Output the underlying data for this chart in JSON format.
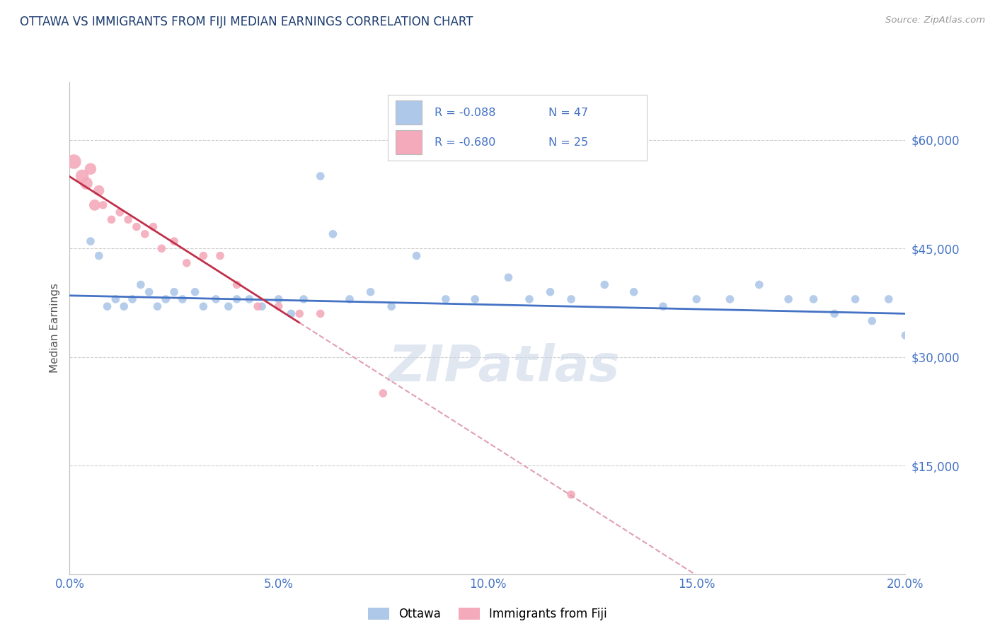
{
  "title": "OTTAWA VS IMMIGRANTS FROM FIJI MEDIAN EARNINGS CORRELATION CHART",
  "source": "Source: ZipAtlas.com",
  "ylabel": "Median Earnings",
  "xlim": [
    0.0,
    0.2
  ],
  "ylim": [
    0,
    68000
  ],
  "yticks": [
    15000,
    30000,
    45000,
    60000
  ],
  "ytick_labels": [
    "$15,000",
    "$30,000",
    "$45,000",
    "$60,000"
  ],
  "xticks": [
    0.0,
    0.05,
    0.1,
    0.15,
    0.2
  ],
  "xtick_labels": [
    "0.0%",
    "5.0%",
    "10.0%",
    "15.0%",
    "20.0%"
  ],
  "legend_R": [
    -0.088,
    -0.68
  ],
  "legend_N": [
    47,
    25
  ],
  "blue_color": "#adc8e8",
  "pink_color": "#f4aabb",
  "blue_line_color": "#4472c4",
  "pink_line_color": "#c0304a",
  "pink_line_dashed_color": "#e0a0b0",
  "title_color": "#1a3a6e",
  "axis_label_color": "#555555",
  "tick_color": "#4472c4",
  "watermark_color": "#ccd8e8",
  "grid_color": "#cccccc",
  "ottawa_x": [
    0.005,
    0.007,
    0.009,
    0.011,
    0.013,
    0.015,
    0.017,
    0.019,
    0.021,
    0.023,
    0.025,
    0.027,
    0.03,
    0.032,
    0.035,
    0.038,
    0.04,
    0.043,
    0.046,
    0.05,
    0.053,
    0.056,
    0.06,
    0.063,
    0.067,
    0.072,
    0.077,
    0.083,
    0.09,
    0.097,
    0.105,
    0.11,
    0.115,
    0.12,
    0.128,
    0.135,
    0.142,
    0.15,
    0.158,
    0.165,
    0.172,
    0.178,
    0.183,
    0.188,
    0.192,
    0.196,
    0.2
  ],
  "ottawa_y": [
    46000,
    44000,
    37000,
    38000,
    37000,
    38000,
    40000,
    39000,
    37000,
    38000,
    39000,
    38000,
    39000,
    37000,
    38000,
    37000,
    38000,
    38000,
    37000,
    38000,
    36000,
    38000,
    55000,
    47000,
    38000,
    39000,
    37000,
    44000,
    38000,
    38000,
    41000,
    38000,
    39000,
    38000,
    40000,
    39000,
    37000,
    38000,
    38000,
    40000,
    38000,
    38000,
    36000,
    38000,
    35000,
    38000,
    33000
  ],
  "fiji_x": [
    0.001,
    0.003,
    0.004,
    0.005,
    0.006,
    0.007,
    0.008,
    0.01,
    0.012,
    0.014,
    0.016,
    0.018,
    0.02,
    0.022,
    0.025,
    0.028,
    0.032,
    0.036,
    0.04,
    0.045,
    0.05,
    0.055,
    0.06,
    0.075,
    0.12
  ],
  "fiji_y": [
    57000,
    55000,
    54000,
    56000,
    51000,
    53000,
    51000,
    49000,
    50000,
    49000,
    48000,
    47000,
    48000,
    45000,
    46000,
    43000,
    44000,
    44000,
    40000,
    37000,
    37000,
    36000,
    36000,
    25000,
    11000
  ],
  "fiji_sizes_large": [
    220,
    180,
    160,
    140,
    130,
    120
  ],
  "ottawa_dot_size": 70,
  "fiji_dot_size": 70,
  "fiji_large_indices": [
    0,
    1,
    2,
    3,
    4,
    5
  ],
  "fiji_large_sizes": [
    220,
    180,
    160,
    140,
    130,
    120
  ]
}
